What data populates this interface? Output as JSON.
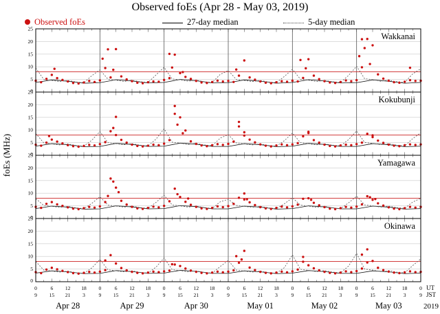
{
  "chart_data": {
    "type": "scatter",
    "title": "Observed foEs (Apr 28 - May 03, 2019)",
    "ylabel": "foEs (MHz)",
    "ylim": [
      0,
      25
    ],
    "yticks": [
      0,
      5,
      10,
      15,
      20,
      25
    ],
    "xlim_hours": [
      0,
      144
    ],
    "grid": true,
    "threshold_mhz": 8,
    "threshold_color": "#cc2222",
    "legend": [
      {
        "label": "Observed foEs",
        "style": "dot",
        "color": "#cc1111"
      },
      {
        "label": "27-day median",
        "style": "solid",
        "color": "#111111"
      },
      {
        "label": "5-day median",
        "style": "dotted",
        "color": "#555555"
      }
    ],
    "ut_tick_labels": [
      "0",
      "6",
      "12",
      "18",
      "0",
      "6",
      "12",
      "18",
      "0",
      "6",
      "12",
      "18",
      "0",
      "6",
      "12",
      "18",
      "0",
      "6",
      "12",
      "18",
      "0",
      "6",
      "12",
      "18",
      "0"
    ],
    "jst_tick_labels": [
      "9",
      "15",
      "21",
      "3",
      "9",
      "15",
      "21",
      "3",
      "9",
      "15",
      "21",
      "3",
      "9",
      "15",
      "21",
      "3",
      "9",
      "15",
      "21",
      "3",
      "9",
      "15",
      "21",
      "3",
      "9"
    ],
    "axis_unit_labels": {
      "top": "UT",
      "bottom": "JST"
    },
    "date_labels": [
      "Apr 28",
      "Apr 29",
      "Apr 30",
      "May 01",
      "May 02",
      "May 03"
    ],
    "year_label": "2019",
    "observed_step_hours": 2,
    "median27_step_hours": 6,
    "median5_step_hours": 3,
    "panels": [
      {
        "name": "Wakkanai",
        "observed": [
          4.5,
          3.9,
          5.2,
          6.8,
          5.5,
          4.8,
          4.2,
          3.6,
          3.4,
          3.8,
          4.4,
          4.0,
          4.6,
          9.5,
          5.8,
          17.0,
          6.2,
          5.0,
          4.3,
          3.7,
          3.5,
          3.9,
          4.2,
          4.1,
          4.8,
          5.5,
          14.8,
          7.5,
          6.0,
          5.2,
          4.4,
          3.8,
          3.6,
          4.0,
          4.5,
          4.2,
          4.4,
          4.0,
          6.5,
          12.5,
          5.8,
          4.9,
          4.2,
          3.7,
          3.5,
          3.9,
          4.3,
          4.1,
          4.5,
          4.2,
          5.6,
          13.0,
          6.5,
          5.1,
          4.3,
          3.8,
          3.6,
          4.0,
          4.6,
          4.3,
          4.7,
          9.8,
          21.0,
          18.5,
          7.0,
          5.3,
          4.5,
          3.9,
          3.7,
          4.1,
          4.7,
          4.4,
          4.5
        ],
        "extra_points": [
          [
            25,
            13.2
          ],
          [
            27,
            16.9
          ],
          [
            29,
            8.8
          ],
          [
            50,
            15.1
          ],
          [
            51,
            9.7
          ],
          [
            75,
            8.9
          ],
          [
            99,
            12.7
          ],
          [
            101,
            9.4
          ],
          [
            121,
            14.2
          ],
          [
            122,
            20.9
          ],
          [
            123,
            17.4
          ],
          [
            125,
            11.1
          ],
          [
            140,
            9.6
          ],
          [
            7,
            9.2
          ],
          [
            55,
            7.9
          ]
        ],
        "median27": [
          3.8,
          4.8,
          4.3,
          3.5,
          3.7,
          4.9,
          4.4,
          3.6,
          3.8,
          5.0,
          4.5,
          3.6,
          3.7,
          4.8,
          4.3,
          3.5,
          3.8,
          4.9,
          4.4,
          3.6,
          3.7,
          4.8,
          4.3,
          3.5,
          3.8
        ],
        "median5": [
          9.5,
          5.0,
          4.6,
          4.2,
          4.6,
          4.0,
          3.7,
          6.5,
          8.8,
          5.1,
          4.7,
          4.2,
          4.7,
          4.1,
          3.8,
          6.8,
          9.8,
          5.2,
          4.8,
          4.3,
          4.7,
          4.1,
          3.8,
          7.0,
          8.5,
          5.0,
          4.6,
          4.2,
          4.6,
          4.0,
          3.7,
          6.2,
          9.0,
          5.1,
          4.7,
          4.2,
          4.6,
          4.1,
          3.8,
          6.6,
          10.2,
          5.3,
          4.9,
          4.3,
          4.7,
          4.1,
          3.8,
          7.2,
          9.2
        ]
      },
      {
        "name": "Kokubunji",
        "observed": [
          4.2,
          3.8,
          5.0,
          6.2,
          5.4,
          4.7,
          4.0,
          3.6,
          3.4,
          3.7,
          4.1,
          3.9,
          4.4,
          5.2,
          9.5,
          8.0,
          6.1,
          5.0,
          4.2,
          3.7,
          3.5,
          3.8,
          4.2,
          4.0,
          4.6,
          6.0,
          19.5,
          15.0,
          9.8,
          5.5,
          4.5,
          3.9,
          3.6,
          4.0,
          4.4,
          4.1,
          4.5,
          5.4,
          13.2,
          7.8,
          6.2,
          5.1,
          4.3,
          3.8,
          3.5,
          3.9,
          4.3,
          4.0,
          4.3,
          4.8,
          7.5,
          8.8,
          6.0,
          5.0,
          4.2,
          3.7,
          3.5,
          3.9,
          4.2,
          4.0,
          4.4,
          5.0,
          8.5,
          7.2,
          5.8,
          4.9,
          4.2,
          3.8,
          3.6,
          4.0,
          4.3,
          4.1,
          4.3
        ],
        "extra_points": [
          [
            30,
            15.2
          ],
          [
            52,
            16.4
          ],
          [
            53,
            12.1
          ],
          [
            55,
            8.7
          ],
          [
            76,
            11.4
          ],
          [
            78,
            9.1
          ],
          [
            102,
            9.3
          ],
          [
            126,
            7.9
          ],
          [
            5,
            7.6
          ],
          [
            29,
            10.8
          ]
        ],
        "median27": [
          3.6,
          4.6,
          4.2,
          3.4,
          3.5,
          4.7,
          4.3,
          3.5,
          3.6,
          4.8,
          4.4,
          3.5,
          3.5,
          4.6,
          4.2,
          3.4,
          3.6,
          4.7,
          4.3,
          3.5,
          3.5,
          4.6,
          4.2,
          3.4,
          3.6
        ],
        "median5": [
          8.6,
          4.9,
          4.5,
          4.1,
          4.5,
          3.9,
          3.6,
          6.0,
          9.4,
          5.0,
          4.6,
          4.2,
          4.6,
          4.0,
          3.7,
          6.4,
          10.5,
          5.2,
          4.8,
          4.3,
          4.7,
          4.1,
          3.8,
          6.8,
          8.2,
          4.9,
          4.5,
          4.1,
          4.5,
          3.9,
          3.6,
          5.8,
          8.8,
          5.0,
          4.6,
          4.1,
          4.5,
          4.0,
          3.7,
          6.2,
          9.6,
          5.1,
          4.7,
          4.2,
          4.6,
          4.0,
          3.7,
          6.6,
          8.9
        ]
      },
      {
        "name": "Yamagawa",
        "observed": [
          4.6,
          4.2,
          5.8,
          6.5,
          5.6,
          5.0,
          4.4,
          3.9,
          3.7,
          4.1,
          4.6,
          4.3,
          4.8,
          6.5,
          15.8,
          12.2,
          7.0,
          5.5,
          4.6,
          4.0,
          3.8,
          4.2,
          4.7,
          4.4,
          5.0,
          6.8,
          11.8,
          8.5,
          6.6,
          5.4,
          4.6,
          4.0,
          3.8,
          4.2,
          4.8,
          4.5,
          4.9,
          5.8,
          8.2,
          7.5,
          6.4,
          5.3,
          4.5,
          4.0,
          3.8,
          4.2,
          4.7,
          4.4,
          4.8,
          5.5,
          7.8,
          8.0,
          6.2,
          5.2,
          4.5,
          3.9,
          3.7,
          4.1,
          4.6,
          4.3,
          4.7,
          5.6,
          8.8,
          7.4,
          6.0,
          5.1,
          4.4,
          3.9,
          3.7,
          4.1,
          4.6,
          4.3,
          4.6
        ],
        "extra_points": [
          [
            29,
            14.6
          ],
          [
            31,
            10.4
          ],
          [
            27,
            8.9
          ],
          [
            53,
            9.6
          ],
          [
            57,
            7.9
          ],
          [
            78,
            9.9
          ],
          [
            79,
            7.6
          ],
          [
            103,
            7.4
          ],
          [
            127,
            7.7
          ],
          [
            125,
            8.4
          ]
        ],
        "median27": [
          3.9,
          4.9,
          4.5,
          3.7,
          3.8,
          5.0,
          4.6,
          3.8,
          3.9,
          5.1,
          4.7,
          3.8,
          3.8,
          4.9,
          4.5,
          3.7,
          3.9,
          5.0,
          4.6,
          3.8,
          3.8,
          4.9,
          4.5,
          3.7,
          3.9
        ],
        "median5": [
          7.8,
          5.2,
          4.8,
          4.4,
          4.8,
          4.2,
          3.9,
          6.0,
          8.6,
          5.3,
          4.9,
          4.5,
          4.9,
          4.3,
          4.0,
          6.4,
          9.2,
          5.4,
          5.0,
          4.5,
          4.9,
          4.3,
          4.0,
          6.6,
          7.6,
          5.2,
          4.8,
          4.4,
          4.8,
          4.2,
          3.9,
          5.8,
          8.2,
          5.3,
          4.9,
          4.4,
          4.8,
          4.2,
          3.9,
          6.2,
          8.8,
          5.4,
          5.0,
          4.5,
          4.9,
          4.3,
          4.0,
          6.5,
          8.0
        ]
      },
      {
        "name": "Okinawa",
        "observed": [
          3.8,
          3.4,
          4.8,
          5.5,
          4.9,
          4.3,
          3.8,
          3.4,
          3.2,
          3.5,
          3.9,
          3.6,
          4.0,
          4.6,
          10.5,
          7.2,
          5.4,
          4.5,
          3.9,
          3.5,
          3.3,
          3.6,
          4.0,
          3.8,
          4.1,
          4.4,
          6.8,
          6.2,
          5.2,
          4.4,
          3.9,
          3.5,
          3.3,
          3.6,
          4.0,
          3.7,
          4.0,
          4.5,
          7.5,
          12.2,
          5.6,
          4.6,
          3.9,
          3.5,
          3.3,
          3.6,
          4.0,
          3.7,
          4.1,
          4.8,
          9.8,
          6.5,
          5.3,
          4.5,
          3.9,
          3.5,
          3.3,
          3.6,
          4.1,
          3.8,
          4.2,
          5.2,
          12.8,
          8.2,
          5.5,
          4.6,
          4.0,
          3.6,
          3.4,
          3.7,
          4.1,
          3.8,
          3.9
        ],
        "extra_points": [
          [
            26,
            8.4
          ],
          [
            75,
            10.1
          ],
          [
            77,
            8.8
          ],
          [
            100,
            7.9
          ],
          [
            122,
            10.7
          ],
          [
            124,
            7.6
          ],
          [
            51,
            6.9
          ]
        ],
        "median27": [
          3.4,
          4.3,
          3.9,
          3.2,
          3.3,
          4.4,
          4.0,
          3.3,
          3.4,
          4.5,
          4.1,
          3.3,
          3.3,
          4.3,
          3.9,
          3.2,
          3.4,
          4.4,
          4.0,
          3.3,
          3.3,
          4.3,
          3.9,
          3.2,
          3.4
        ],
        "median5": [
          8.0,
          4.6,
          4.2,
          3.8,
          4.2,
          3.6,
          3.3,
          5.5,
          8.8,
          4.7,
          4.3,
          3.9,
          4.3,
          3.7,
          3.4,
          5.8,
          9.4,
          4.8,
          4.4,
          3.9,
          4.3,
          3.7,
          3.4,
          6.0,
          8.4,
          4.6,
          4.2,
          3.8,
          4.2,
          3.6,
          3.3,
          5.6,
          10.6,
          4.9,
          4.5,
          4.0,
          4.4,
          3.8,
          3.5,
          6.2,
          11.2,
          5.0,
          4.6,
          4.0,
          4.4,
          3.8,
          3.5,
          6.4,
          9.0
        ]
      }
    ]
  }
}
